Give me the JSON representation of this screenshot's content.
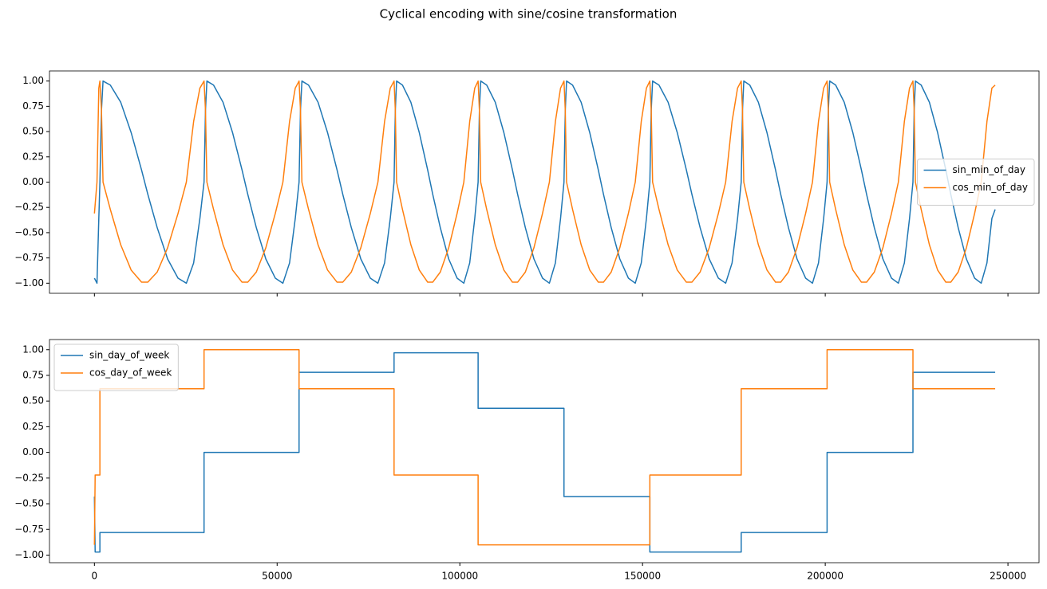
{
  "title": "Cyclical encoding with sine/cosine transformation",
  "chart_data": [
    {
      "type": "line",
      "x": [
        0,
        700,
        1200,
        1500,
        1928,
        2355,
        4350,
        7200,
        10050,
        12900,
        14610,
        17175,
        20025,
        22875,
        25155,
        27150,
        28860,
        30000,
        30390,
        30780,
        32600,
        35200,
        37800,
        40400,
        41960,
        44300,
        46900,
        49500,
        51580,
        53400,
        54960,
        56000,
        56390,
        56780,
        58600,
        61200,
        63800,
        66400,
        67960,
        70300,
        72900,
        75500,
        77580,
        79400,
        80960,
        82000,
        82345,
        82690,
        84300,
        86600,
        88900,
        91200,
        92580,
        94650,
        96950,
        99250,
        101090,
        102700,
        104080,
        105000,
        105353,
        105705,
        107350,
        109700,
        112050,
        114400,
        115810,
        117925,
        120275,
        122625,
        124505,
        126150,
        127560,
        128500,
        128853,
        129205,
        130850,
        133200,
        135550,
        137900,
        139310,
        141425,
        143775,
        146125,
        148005,
        149650,
        151060,
        152000,
        152375,
        152750,
        154500,
        157000,
        159500,
        162000,
        163500,
        165750,
        168250,
        170750,
        172750,
        174500,
        176000,
        177000,
        177353,
        177705,
        179350,
        181700,
        184050,
        186400,
        187810,
        189925,
        192275,
        194625,
        196505,
        198150,
        199560,
        200500,
        200853,
        201205,
        202850,
        205200,
        207550,
        209900,
        211310,
        213425,
        215775,
        218125,
        220005,
        221650,
        223060,
        224000,
        224338,
        224675,
        226250,
        228500,
        230750,
        233000,
        234350,
        236375,
        238625,
        240875,
        242675,
        244250,
        245600,
        246500
      ],
      "series": [
        {
          "name": "sin_min_of_day",
          "color": "#1f77b4",
          "values": [
            -0.95,
            -1,
            -0.36,
            0,
            0.71,
            1,
            0.96,
            0.79,
            0.49,
            0.12,
            -0.12,
            -0.45,
            -0.76,
            -0.95,
            -1,
            -0.8,
            -0.36,
            0,
            0.71,
            1,
            0.96,
            0.79,
            0.49,
            0.12,
            -0.12,
            -0.45,
            -0.76,
            -0.95,
            -1,
            -0.8,
            -0.36,
            0,
            0.71,
            1,
            0.96,
            0.79,
            0.49,
            0.12,
            -0.12,
            -0.45,
            -0.76,
            -0.95,
            -1,
            -0.8,
            -0.36,
            0,
            0.71,
            1,
            0.96,
            0.79,
            0.49,
            0.12,
            -0.12,
            -0.45,
            -0.76,
            -0.95,
            -1,
            -0.8,
            -0.36,
            0,
            0.71,
            1,
            0.96,
            0.79,
            0.49,
            0.12,
            -0.12,
            -0.45,
            -0.76,
            -0.95,
            -1,
            -0.8,
            -0.36,
            0,
            0.71,
            1,
            0.96,
            0.79,
            0.49,
            0.12,
            -0.12,
            -0.45,
            -0.76,
            -0.95,
            -1,
            -0.8,
            -0.36,
            0,
            0.71,
            1,
            0.96,
            0.79,
            0.49,
            0.12,
            -0.12,
            -0.45,
            -0.76,
            -0.95,
            -1,
            -0.8,
            -0.36,
            0,
            0.71,
            1,
            0.96,
            0.79,
            0.49,
            0.12,
            -0.12,
            -0.45,
            -0.76,
            -0.95,
            -1,
            -0.8,
            -0.36,
            0,
            0.71,
            1,
            0.96,
            0.79,
            0.49,
            0.12,
            -0.12,
            -0.45,
            -0.76,
            -0.95,
            -1,
            -0.8,
            -0.36,
            0,
            0.71,
            1,
            0.96,
            0.79,
            0.49,
            0.12,
            -0.12,
            -0.45,
            -0.76,
            -0.95,
            -1,
            -0.8,
            -0.36,
            -0.27
          ]
        },
        {
          "name": "cos_min_of_day",
          "color": "#ff7f0e",
          "values": [
            -0.31,
            0,
            0.93,
            1,
            0.71,
            0,
            -0.27,
            -0.62,
            -0.87,
            -0.99,
            -0.99,
            -0.89,
            -0.65,
            -0.31,
            0,
            0.6,
            0.93,
            1,
            0.71,
            0,
            -0.27,
            -0.62,
            -0.87,
            -0.99,
            -0.99,
            -0.89,
            -0.65,
            -0.31,
            0,
            0.6,
            0.93,
            1,
            0.71,
            0,
            -0.27,
            -0.62,
            -0.87,
            -0.99,
            -0.99,
            -0.89,
            -0.65,
            -0.31,
            0,
            0.6,
            0.93,
            1,
            0.71,
            0,
            -0.27,
            -0.62,
            -0.87,
            -0.99,
            -0.99,
            -0.89,
            -0.65,
            -0.31,
            0,
            0.6,
            0.93,
            1,
            0.71,
            0,
            -0.27,
            -0.62,
            -0.87,
            -0.99,
            -0.99,
            -0.89,
            -0.65,
            -0.31,
            0,
            0.6,
            0.93,
            1,
            0.71,
            0,
            -0.27,
            -0.62,
            -0.87,
            -0.99,
            -0.99,
            -0.89,
            -0.65,
            -0.31,
            0,
            0.6,
            0.93,
            1,
            0.71,
            0,
            -0.27,
            -0.62,
            -0.87,
            -0.99,
            -0.99,
            -0.89,
            -0.65,
            -0.31,
            0,
            0.6,
            0.93,
            1,
            0.71,
            0,
            -0.27,
            -0.62,
            -0.87,
            -0.99,
            -0.99,
            -0.89,
            -0.65,
            -0.31,
            0,
            0.6,
            0.93,
            1,
            0.71,
            0,
            -0.27,
            -0.62,
            -0.87,
            -0.99,
            -0.99,
            -0.89,
            -0.65,
            -0.31,
            0,
            0.6,
            0.93,
            1,
            0.71,
            0,
            -0.27,
            -0.62,
            -0.87,
            -0.99,
            -0.99,
            -0.89,
            -0.65,
            -0.31,
            0,
            0.6,
            0.93,
            0.96
          ]
        }
      ],
      "xlim": [
        -12300,
        258500
      ],
      "xticks": [
        0,
        50000,
        100000,
        150000,
        200000,
        250000
      ],
      "show_xtick_labels": false,
      "ylim": [
        -1.1,
        1.1
      ],
      "yticks": [
        {
          "value": -1,
          "label": "−1.00"
        },
        {
          "value": -0.75,
          "label": "−0.75"
        },
        {
          "value": -0.5,
          "label": "−0.50"
        },
        {
          "value": -0.25,
          "label": "−0.25"
        },
        {
          "value": 0,
          "label": "0.00"
        },
        {
          "value": 0.25,
          "label": "0.25"
        },
        {
          "value": 0.5,
          "label": "0.50"
        },
        {
          "value": 0.75,
          "label": "0.75"
        },
        {
          "value": 1,
          "label": "1.00"
        }
      ],
      "legend": "center right"
    },
    {
      "type": "line",
      "x": [
        0,
        200,
        1500,
        1500,
        30000,
        30000,
        56000,
        56000,
        82000,
        82000,
        105000,
        105000,
        128500,
        128500,
        152000,
        152000,
        177000,
        177000,
        200500,
        200500,
        224000,
        224000,
        246500
      ],
      "series": [
        {
          "name": "sin_day_of_week",
          "color": "#1f77b4",
          "values": [
            -0.43,
            -0.97,
            -0.97,
            -0.78,
            -0.78,
            0,
            0,
            0.78,
            0.78,
            0.97,
            0.97,
            0.43,
            0.43,
            -0.43,
            -0.43,
            -0.97,
            -0.97,
            -0.78,
            -0.78,
            0,
            0,
            0.78,
            0.78
          ]
        },
        {
          "name": "cos_day_of_week",
          "color": "#ff7f0e",
          "values": [
            -0.9,
            -0.22,
            -0.22,
            0.62,
            0.62,
            1,
            1,
            0.62,
            0.62,
            -0.22,
            -0.22,
            -0.9,
            -0.9,
            -0.9,
            -0.9,
            -0.22,
            -0.22,
            0.62,
            0.62,
            1,
            1,
            0.62,
            0.62
          ]
        }
      ],
      "xlim": [
        -12300,
        258500
      ],
      "xticks": [
        0,
        50000,
        100000,
        150000,
        200000,
        250000
      ],
      "show_xtick_labels": true,
      "ylim": [
        -1.074,
        1.099
      ],
      "yticks": [
        {
          "value": -1,
          "label": "−1.00"
        },
        {
          "value": -0.75,
          "label": "−0.75"
        },
        {
          "value": -0.5,
          "label": "−0.50"
        },
        {
          "value": -0.25,
          "label": "−0.25"
        },
        {
          "value": 0,
          "label": "0.00"
        },
        {
          "value": 0.25,
          "label": "0.25"
        },
        {
          "value": 0.5,
          "label": "0.50"
        },
        {
          "value": 0.75,
          "label": "0.75"
        },
        {
          "value": 1,
          "label": "1.00"
        }
      ],
      "legend": "upper left"
    }
  ]
}
